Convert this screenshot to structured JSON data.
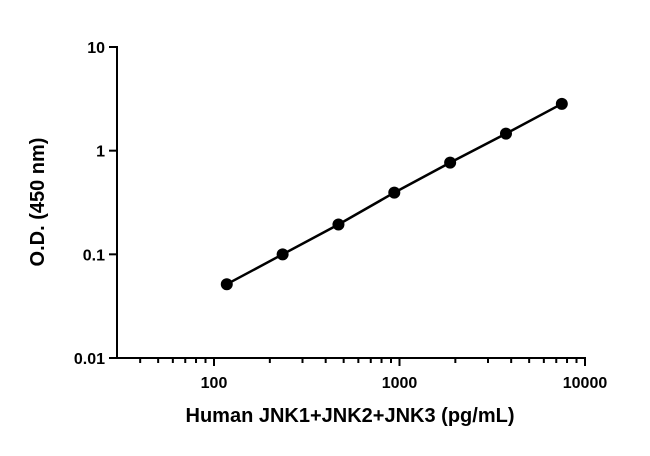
{
  "chart_data": {
    "type": "line",
    "xlabel": "Human JNK1+JNK2+JNK3 (pg/mL)",
    "ylabel": "O.D. (450 nm)",
    "xscale": "log",
    "yscale": "log",
    "xlim": [
      30,
      10000
    ],
    "ylim": [
      0.01,
      10
    ],
    "xticks": [
      100,
      1000,
      10000
    ],
    "xminorticks": [
      40,
      50,
      60,
      70,
      80,
      90,
      200,
      300,
      400,
      500,
      600,
      700,
      800,
      900,
      2000,
      3000,
      4000,
      5000,
      6000,
      7000,
      8000,
      9000
    ],
    "yticks": [
      0.01,
      0.1,
      1,
      10
    ],
    "series": [
      {
        "color": "#000000",
        "x": [
          117.2,
          234.4,
          468.75,
          937.5,
          1875,
          3750,
          7500
        ],
        "values": [
          0.0515,
          0.1,
          0.194,
          0.394,
          0.767,
          1.46,
          2.83
        ]
      }
    ]
  }
}
